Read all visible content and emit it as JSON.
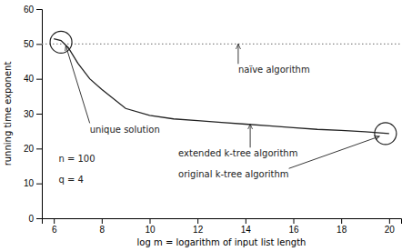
{
  "chart_data": {
    "type": "line",
    "title": "",
    "xlabel": "log m = logarithm of input list length",
    "ylabel": "running time exponent",
    "xlim": [
      5.5,
      20.5
    ],
    "ylim": [
      0,
      60
    ],
    "xticks": [
      6,
      8,
      10,
      12,
      14,
      16,
      18,
      20
    ],
    "yticks": [
      0,
      10,
      20,
      30,
      40,
      50,
      60
    ],
    "grid": false,
    "x": [
      6,
      6.3,
      6.6,
      7.0,
      7.5,
      8,
      9,
      10,
      11,
      12,
      13,
      14,
      15,
      16,
      17,
      18,
      19,
      20
    ],
    "series": [
      {
        "color": "#222222",
        "values": [
          51.5,
          51.0,
          49.0,
          44.5,
          40.0,
          37.0,
          31.5,
          29.5,
          28.5,
          28.0,
          27.5,
          27.0,
          26.5,
          26.0,
          25.5,
          25.2,
          24.8,
          24.3
        ]
      }
    ],
    "reference_line": {
      "y": 50,
      "color": "#888888",
      "line_style": "dotted"
    },
    "circles": [
      {
        "x": 6.3,
        "y": 50.5
      },
      {
        "x": 19.85,
        "y": 24.3
      }
    ],
    "annotations": [
      {
        "text": "naïve algorithm",
        "x": 13.7,
        "y": 43.5,
        "arrow_x": 13.7,
        "arrow_y": 50.0
      },
      {
        "text": "unique solution",
        "x": 7.5,
        "y": 26.5,
        "arrow_x": 6.5,
        "arrow_y": 49.5
      },
      {
        "text": "extended k-tree algorithm",
        "x": 11.2,
        "y": 19.5,
        "arrow_x": 14.2,
        "arrow_y": 27.0
      },
      {
        "text": "original k-tree algorithm",
        "x": 11.2,
        "y": 13.5,
        "arrow_x": 19.6,
        "arrow_y": 23.5
      },
      {
        "text": "n = 100",
        "x": 6.2,
        "y": 17.0
      },
      {
        "text": "q = 4",
        "x": 6.2,
        "y": 11.0
      }
    ]
  }
}
